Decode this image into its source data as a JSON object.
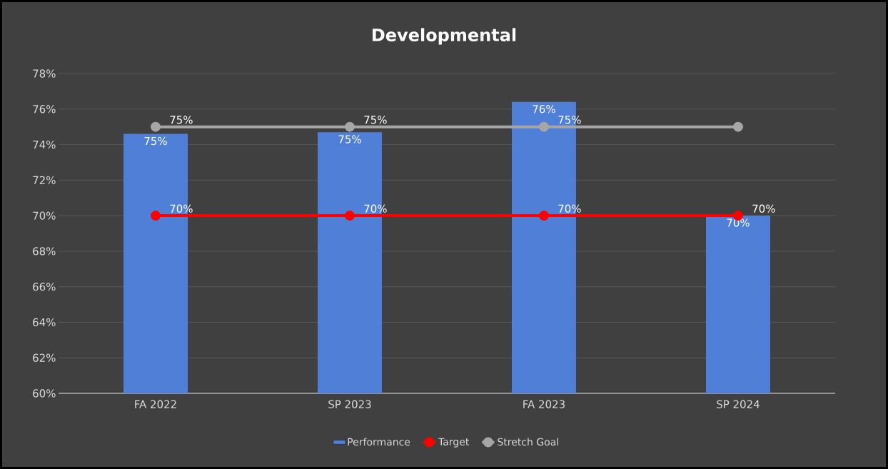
{
  "chart_data": {
    "type": "bar",
    "title": "Developmental",
    "categories": [
      "FA 2022",
      "SP 2023",
      "FA 2023",
      "SP 2024"
    ],
    "series": [
      {
        "name": "Performance",
        "color": "#4f7fd6",
        "values": [
          74.6,
          74.7,
          76.4,
          70.0
        ],
        "value_labels": [
          "75%",
          "75%",
          "76%",
          "70%"
        ]
      },
      {
        "name": "Target",
        "type": "line",
        "color": "#ff0000",
        "values": [
          70,
          70,
          70,
          70
        ],
        "value_labels": [
          "70%",
          "70%",
          "70%",
          "70%"
        ]
      },
      {
        "name": "Stretch Goal",
        "type": "line",
        "color": "#a6a6a6",
        "values": [
          75,
          75,
          75,
          75
        ],
        "value_labels": [
          "75%",
          "75%",
          "75%",
          null
        ]
      }
    ],
    "ylim": [
      60,
      78
    ],
    "yticks": [
      {
        "value": 60,
        "label": "60%"
      },
      {
        "value": 62,
        "label": "62%"
      },
      {
        "value": 64,
        "label": "64%"
      },
      {
        "value": 66,
        "label": "66%"
      },
      {
        "value": 68,
        "label": "68%"
      },
      {
        "value": 70,
        "label": "70%"
      },
      {
        "value": 72,
        "label": "72%"
      },
      {
        "value": 74,
        "label": "74%"
      },
      {
        "value": 76,
        "label": "76%"
      },
      {
        "value": 78,
        "label": "78%"
      }
    ],
    "grid": "y",
    "legend": "bottom",
    "marker": "circle",
    "line_style": "solid"
  }
}
